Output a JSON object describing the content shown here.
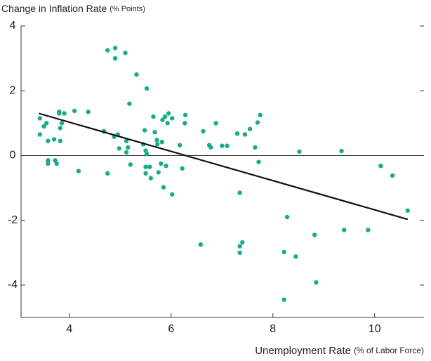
{
  "chart_data": {
    "type": "scatter",
    "title": "Change in Inflation Rate",
    "title_note": "(% Points)",
    "x_label": "Unemployment Rate",
    "x_label_note": "(% of Labor Force)",
    "color": "#1aaa8c",
    "x": [
      3.42,
      3.42,
      3.5,
      3.55,
      3.58,
      3.58,
      3.58,
      3.7,
      3.72,
      3.75,
      3.8,
      3.8,
      3.82,
      3.82,
      3.85,
      3.9,
      4.1,
      4.18,
      4.37,
      4.68,
      4.75,
      4.75,
      4.9,
      4.9,
      4.88,
      4.95,
      4.98,
      5.1,
      5.12,
      5.12,
      5.15,
      5.18,
      5.2,
      5.32,
      5.45,
      5.48,
      5.52,
      5.5,
      5.5,
      5.5,
      5.52,
      5.58,
      5.6,
      5.65,
      5.68,
      5.72,
      5.73,
      5.75,
      5.8,
      5.82,
      5.83,
      5.85,
      5.88,
      5.9,
      5.93,
      5.95,
      6.02,
      6.02,
      6.17,
      6.22,
      6.27,
      6.28,
      6.58,
      6.63,
      6.75,
      6.78,
      6.88,
      7.0,
      7.1,
      7.3,
      7.35,
      7.35,
      7.35,
      7.4,
      7.45,
      7.55,
      7.65,
      7.7,
      7.72,
      7.75,
      8.22,
      8.22,
      8.28,
      8.45,
      8.52,
      8.82,
      8.85,
      9.35,
      9.4,
      9.87,
      10.12,
      10.35,
      10.65
    ],
    "values": [
      1.15,
      0.65,
      0.9,
      1.0,
      0.45,
      -0.15,
      -0.25,
      0.5,
      -0.15,
      -0.25,
      1.3,
      1.35,
      0.85,
      0.45,
      1.0,
      1.3,
      1.38,
      -0.48,
      1.35,
      0.75,
      -0.55,
      3.25,
      3.32,
      3.0,
      0.58,
      0.65,
      0.22,
      3.17,
      0.45,
      0.1,
      0.25,
      1.6,
      -0.28,
      2.5,
      0.35,
      0.78,
      2.07,
      0.15,
      -0.35,
      -0.55,
      0.05,
      -0.35,
      -0.7,
      1.2,
      0.72,
      0.48,
      0.35,
      -0.52,
      -0.25,
      0.42,
      1.1,
      -0.98,
      1.2,
      -0.32,
      1.0,
      1.3,
      -1.2,
      1.15,
      0.32,
      -0.4,
      1.0,
      1.25,
      -2.75,
      0.75,
      0.32,
      0.25,
      1.0,
      0.3,
      0.3,
      0.68,
      -1.15,
      -2.8,
      -3.0,
      -2.68,
      0.65,
      0.82,
      0.25,
      1.02,
      -0.2,
      1.25,
      -2.98,
      -4.45,
      -1.9,
      -3.12,
      0.12,
      -2.45,
      -3.92,
      0.14,
      -2.3,
      -2.3,
      -0.32,
      -0.62,
      -1.7
    ],
    "fit": {
      "x": [
        3.4,
        10.65
      ],
      "y": [
        1.3,
        -1.97
      ]
    },
    "xlim": [
      3.05,
      10.97
    ],
    "xticks": [
      4,
      6,
      8,
      10
    ],
    "ylim": [
      -5,
      4
    ],
    "yticks": [
      4,
      2,
      0,
      -2,
      -4
    ]
  }
}
